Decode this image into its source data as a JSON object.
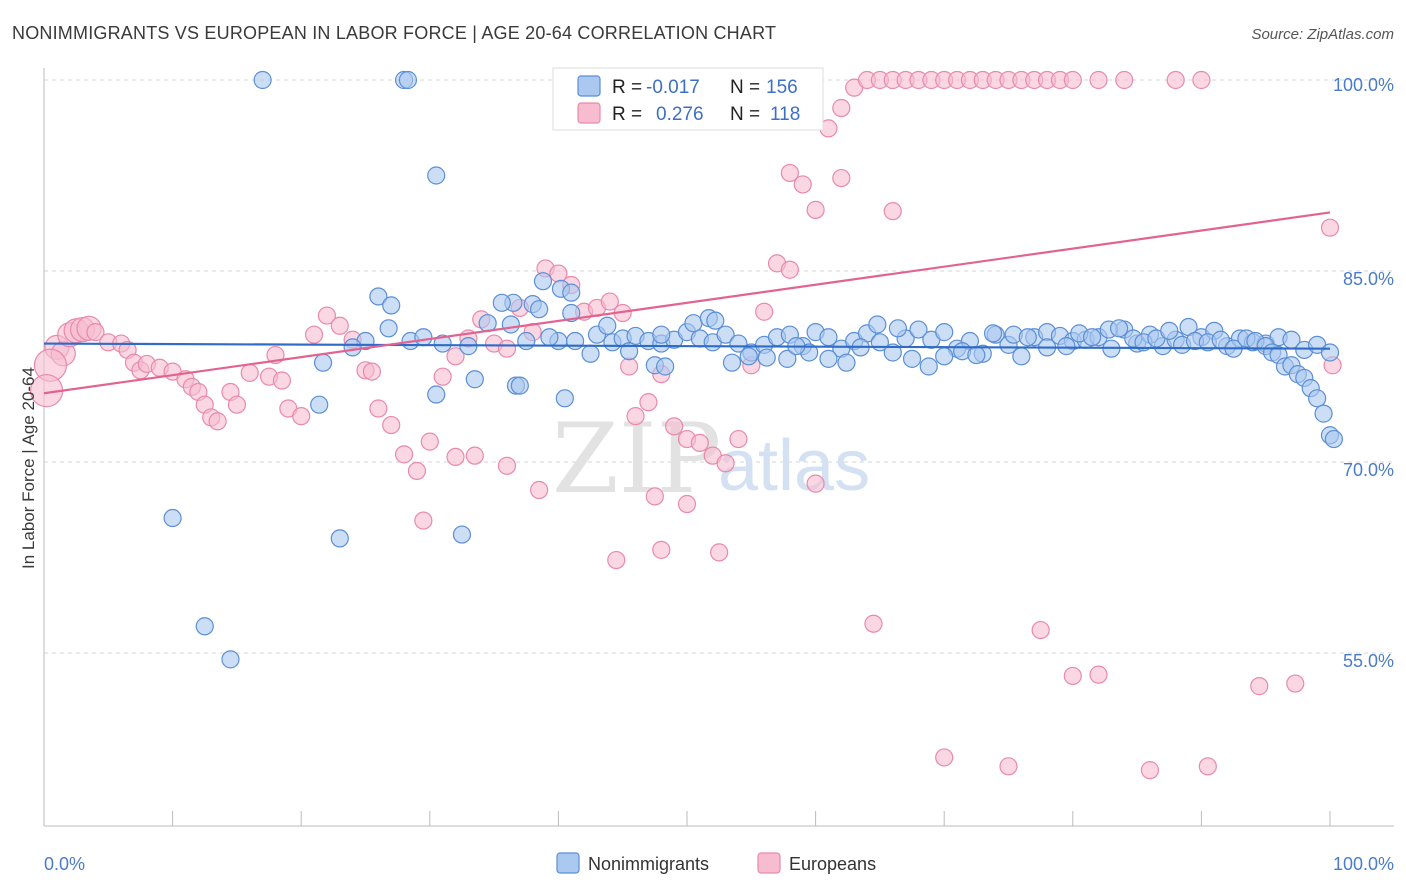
{
  "chart_data": {
    "type": "scatter",
    "title": "NONIMMIGRANTS VS EUROPEAN IN LABOR FORCE | AGE 20-64 CORRELATION CHART",
    "source": "Source: ZipAtlas.com",
    "ylabel": "In Labor Force | Age 20-64",
    "xlabel": "",
    "xlim": [
      0,
      100
    ],
    "ylim": [
      40,
      101.5
    ],
    "x_tick_labels": [
      "0.0%",
      "100.0%"
    ],
    "y_ticks": [
      {
        "value": 100,
        "label": "100.0%"
      },
      {
        "value": 85,
        "label": "85.0%"
      },
      {
        "value": 70,
        "label": "70.0%"
      },
      {
        "value": 55,
        "label": "55.0%"
      }
    ],
    "grid": "horizontal dashed",
    "legend_position": "top-center",
    "watermark": {
      "part1": "ZIP",
      "part2": "atlas"
    },
    "colors": {
      "blue_fill": "#aac8f0",
      "blue_stroke": "#5b8fd6",
      "blue_line": "#2f6cc8",
      "pink_fill": "#f7bcd0",
      "pink_stroke": "#e98aaa",
      "pink_line": "#e26391",
      "tick_label": "#4a7cc9"
    },
    "stats_legend": [
      {
        "series": "Nonimmigrants",
        "r_label": "R =",
        "r_value": "-0.017",
        "n_label": "N =",
        "n_value": "156"
      },
      {
        "series": "Europeans",
        "r_label": "R =",
        "r_value": "0.276",
        "n_label": "N =",
        "n_value": "118"
      }
    ],
    "series": [
      {
        "name": "Nonimmigrants",
        "color": "blue",
        "trend": {
          "x0": 0,
          "y0": 79.3,
          "x1": 100,
          "y1": 78.9
        },
        "points": [
          [
            17,
            100
          ],
          [
            28,
            100
          ],
          [
            28.3,
            100
          ],
          [
            30.5,
            92.5
          ],
          [
            38.8,
            84.2
          ],
          [
            40.2,
            83.6
          ],
          [
            41,
            83.3
          ],
          [
            38,
            82.4
          ],
          [
            36.5,
            82.5
          ],
          [
            35.6,
            82.5
          ],
          [
            38.5,
            82
          ],
          [
            41,
            81.7
          ],
          [
            26,
            83
          ],
          [
            27,
            82.3
          ],
          [
            36.3,
            80.8
          ],
          [
            34.5,
            80.9
          ],
          [
            26.8,
            80.5
          ],
          [
            25,
            79.5
          ],
          [
            24,
            79
          ],
          [
            28.5,
            79.5
          ],
          [
            29.5,
            79.8
          ],
          [
            31,
            79.3
          ],
          [
            33,
            79.1
          ],
          [
            33.5,
            76.5
          ],
          [
            36.7,
            76
          ],
          [
            37,
            76
          ],
          [
            40.5,
            75
          ],
          [
            30.5,
            75.3
          ],
          [
            21.4,
            74.5
          ],
          [
            21.7,
            77.8
          ],
          [
            10,
            65.6
          ],
          [
            14.5,
            54.5
          ],
          [
            12.5,
            57.1
          ],
          [
            23,
            64
          ],
          [
            32.5,
            64.3
          ],
          [
            40,
            79.5
          ],
          [
            41.3,
            79.5
          ],
          [
            43,
            80
          ],
          [
            44.2,
            79.4
          ],
          [
            45,
            79.7
          ],
          [
            46,
            79.9
          ],
          [
            47,
            79.5
          ],
          [
            48,
            79.3
          ],
          [
            49,
            79.6
          ],
          [
            50,
            80.2
          ],
          [
            51,
            79.7
          ],
          [
            52,
            79.4
          ],
          [
            53,
            80
          ],
          [
            54,
            79.3
          ],
          [
            55,
            78.6
          ],
          [
            56,
            79.2
          ],
          [
            57,
            79.8
          ],
          [
            58,
            80
          ],
          [
            59,
            79.1
          ],
          [
            60,
            80.2
          ],
          [
            61,
            79.8
          ],
          [
            62,
            78.9
          ],
          [
            63,
            79.5
          ],
          [
            64,
            80.1
          ],
          [
            65,
            79.4
          ],
          [
            66,
            78.6
          ],
          [
            67,
            79.7
          ],
          [
            68,
            80.4
          ],
          [
            69,
            79.6
          ],
          [
            70,
            80.2
          ],
          [
            71,
            78.9
          ],
          [
            72,
            79.5
          ],
          [
            73,
            78.5
          ],
          [
            74,
            80
          ],
          [
            75,
            79.2
          ],
          [
            76,
            78.3
          ],
          [
            77,
            79.8
          ],
          [
            78,
            80.2
          ],
          [
            79,
            79.9
          ],
          [
            80,
            79.5
          ],
          [
            81,
            79.6
          ],
          [
            82,
            79.8
          ],
          [
            83,
            78.9
          ],
          [
            84,
            80.4
          ],
          [
            85,
            79.3
          ],
          [
            86,
            80
          ],
          [
            87,
            79.1
          ],
          [
            88,
            79.6
          ],
          [
            89,
            80.6
          ],
          [
            90,
            79.8
          ],
          [
            91,
            80.3
          ],
          [
            92,
            79.1
          ],
          [
            93,
            79.7
          ],
          [
            94,
            79.4
          ],
          [
            95,
            79.3
          ],
          [
            96,
            79.8
          ],
          [
            97,
            79.6
          ],
          [
            98,
            78.8
          ],
          [
            99,
            79.2
          ],
          [
            100,
            78.6
          ],
          [
            43.8,
            80.7
          ],
          [
            47.5,
            77.6
          ],
          [
            48.3,
            77.5
          ],
          [
            48,
            80
          ],
          [
            50.5,
            80.9
          ],
          [
            51.7,
            81.3
          ],
          [
            52.2,
            81.1
          ],
          [
            53.5,
            77.8
          ],
          [
            54.8,
            78.3
          ],
          [
            56.2,
            78.2
          ],
          [
            57.8,
            78.1
          ],
          [
            59.5,
            78.6
          ],
          [
            61,
            78.1
          ],
          [
            62.4,
            77.8
          ],
          [
            63.5,
            79
          ],
          [
            64.8,
            80.8
          ],
          [
            66.4,
            80.5
          ],
          [
            67.5,
            78.1
          ],
          [
            68.8,
            77.5
          ],
          [
            70,
            78.3
          ],
          [
            71.4,
            78.7
          ],
          [
            72.5,
            78.4
          ],
          [
            73.8,
            80.1
          ],
          [
            75.4,
            80
          ],
          [
            76.5,
            79.8
          ],
          [
            78,
            79
          ],
          [
            79.5,
            79.1
          ],
          [
            80.5,
            80.1
          ],
          [
            81.5,
            79.8
          ],
          [
            82.8,
            80.4
          ],
          [
            83.6,
            80.5
          ],
          [
            84.7,
            79.7
          ],
          [
            85.5,
            79.4
          ],
          [
            86.5,
            79.7
          ],
          [
            87.5,
            80.3
          ],
          [
            88.5,
            79.2
          ],
          [
            89.5,
            79.5
          ],
          [
            90.5,
            79.4
          ],
          [
            91.5,
            79.6
          ],
          [
            92.5,
            78.9
          ],
          [
            93.5,
            79.7
          ],
          [
            94.2,
            79.5
          ],
          [
            95,
            79.1
          ],
          [
            95.5,
            78.6
          ],
          [
            96,
            78.4
          ],
          [
            96.5,
            77.5
          ],
          [
            97,
            77.6
          ],
          [
            97.5,
            76.9
          ],
          [
            98,
            76.6
          ],
          [
            98.5,
            75.8
          ],
          [
            99,
            75
          ],
          [
            99.5,
            73.8
          ],
          [
            100,
            72.1
          ],
          [
            100.3,
            71.8
          ],
          [
            37.5,
            79.5
          ],
          [
            39.3,
            79.8
          ],
          [
            45.5,
            78.7
          ],
          [
            58.5,
            79.1
          ],
          [
            42.5,
            78.5
          ]
        ]
      },
      {
        "name": "Europeans",
        "color": "pink",
        "trend": {
          "x0": 0,
          "y0": 75.4,
          "x1": 100,
          "y1": 89.6
        },
        "points": [
          [
            1,
            79
          ],
          [
            1.5,
            78.5
          ],
          [
            2,
            80
          ],
          [
            2.5,
            80.3
          ],
          [
            3,
            80.4
          ],
          [
            3.5,
            80.5
          ],
          [
            4,
            80.2
          ],
          [
            5,
            79.4
          ],
          [
            6,
            79.3
          ],
          [
            6.5,
            78.8
          ],
          [
            7,
            77.8
          ],
          [
            7.5,
            77.2
          ],
          [
            8,
            77.7
          ],
          [
            9,
            77.4
          ],
          [
            10,
            77.1
          ],
          [
            11,
            76.5
          ],
          [
            11.5,
            75.9
          ],
          [
            12,
            75.5
          ],
          [
            12.5,
            74.5
          ],
          [
            13,
            73.5
          ],
          [
            13.5,
            73.2
          ],
          [
            14.5,
            75.5
          ],
          [
            15,
            74.5
          ],
          [
            16,
            77
          ],
          [
            17.5,
            76.7
          ],
          [
            18,
            78.4
          ],
          [
            18.5,
            76.4
          ],
          [
            19,
            74.2
          ],
          [
            20,
            73.6
          ],
          [
            21,
            80
          ],
          [
            22,
            81.5
          ],
          [
            23,
            80.7
          ],
          [
            24,
            79.6
          ],
          [
            25,
            77.2
          ],
          [
            25.5,
            77.1
          ],
          [
            26,
            74.2
          ],
          [
            27,
            72.9
          ],
          [
            28,
            70.6
          ],
          [
            29,
            69.3
          ],
          [
            30,
            71.6
          ],
          [
            31,
            76.7
          ],
          [
            32,
            78.3
          ],
          [
            33,
            79.7
          ],
          [
            34,
            81.2
          ],
          [
            35,
            79.3
          ],
          [
            36,
            78.9
          ],
          [
            37,
            82.1
          ],
          [
            38,
            80.2
          ],
          [
            39,
            85.2
          ],
          [
            40,
            84.8
          ],
          [
            41,
            83.9
          ],
          [
            42,
            81.8
          ],
          [
            43,
            82.1
          ],
          [
            44,
            82.6
          ],
          [
            45,
            81.7
          ],
          [
            46,
            73.6
          ],
          [
            47,
            74.7
          ],
          [
            48,
            76.9
          ],
          [
            49,
            72.8
          ],
          [
            50,
            71.8
          ],
          [
            51,
            71.5
          ],
          [
            52,
            70.5
          ],
          [
            53,
            69.9
          ],
          [
            54,
            71.8
          ],
          [
            55,
            77.6
          ],
          [
            56,
            81.8
          ],
          [
            57,
            85.6
          ],
          [
            58,
            85.1
          ],
          [
            59,
            91.8
          ],
          [
            60,
            89.8
          ],
          [
            61,
            96.2
          ],
          [
            62,
            97.8
          ],
          [
            63,
            99.4
          ],
          [
            64,
            100
          ],
          [
            65,
            100
          ],
          [
            66,
            100
          ],
          [
            67,
            100
          ],
          [
            68,
            100
          ],
          [
            69,
            100
          ],
          [
            70,
            100
          ],
          [
            71,
            100
          ],
          [
            72,
            100
          ],
          [
            73,
            100
          ],
          [
            74,
            100
          ],
          [
            75,
            100
          ],
          [
            76,
            100
          ],
          [
            77,
            100
          ],
          [
            78,
            100
          ],
          [
            79,
            100
          ],
          [
            80,
            100
          ],
          [
            82,
            100
          ],
          [
            84,
            100
          ],
          [
            88,
            100
          ],
          [
            90,
            100
          ],
          [
            100,
            88.4
          ],
          [
            66,
            89.7
          ],
          [
            62,
            92.3
          ],
          [
            58,
            92.7
          ],
          [
            60,
            68.3
          ],
          [
            64.5,
            57.3
          ],
          [
            70,
            46.8
          ],
          [
            75,
            46.1
          ],
          [
            77.5,
            56.8
          ],
          [
            80,
            53.2
          ],
          [
            82,
            53.3
          ],
          [
            86,
            45.8
          ],
          [
            90.5,
            46.1
          ],
          [
            94.5,
            52.4
          ],
          [
            97.3,
            52.6
          ],
          [
            100.2,
            77.6
          ],
          [
            45.5,
            77.5
          ],
          [
            47.5,
            67.3
          ],
          [
            48,
            63.1
          ],
          [
            44.5,
            62.3
          ],
          [
            50,
            66.7
          ],
          [
            52.5,
            62.9
          ],
          [
            36,
            69.7
          ],
          [
            38.5,
            67.8
          ],
          [
            32,
            70.4
          ],
          [
            33.5,
            70.5
          ],
          [
            29.5,
            65.4
          ],
          [
            0.5,
            77.6
          ],
          [
            0.2,
            75.6
          ]
        ]
      }
    ],
    "bottom_legend": [
      "Nonimmigrants",
      "Europeans"
    ]
  }
}
